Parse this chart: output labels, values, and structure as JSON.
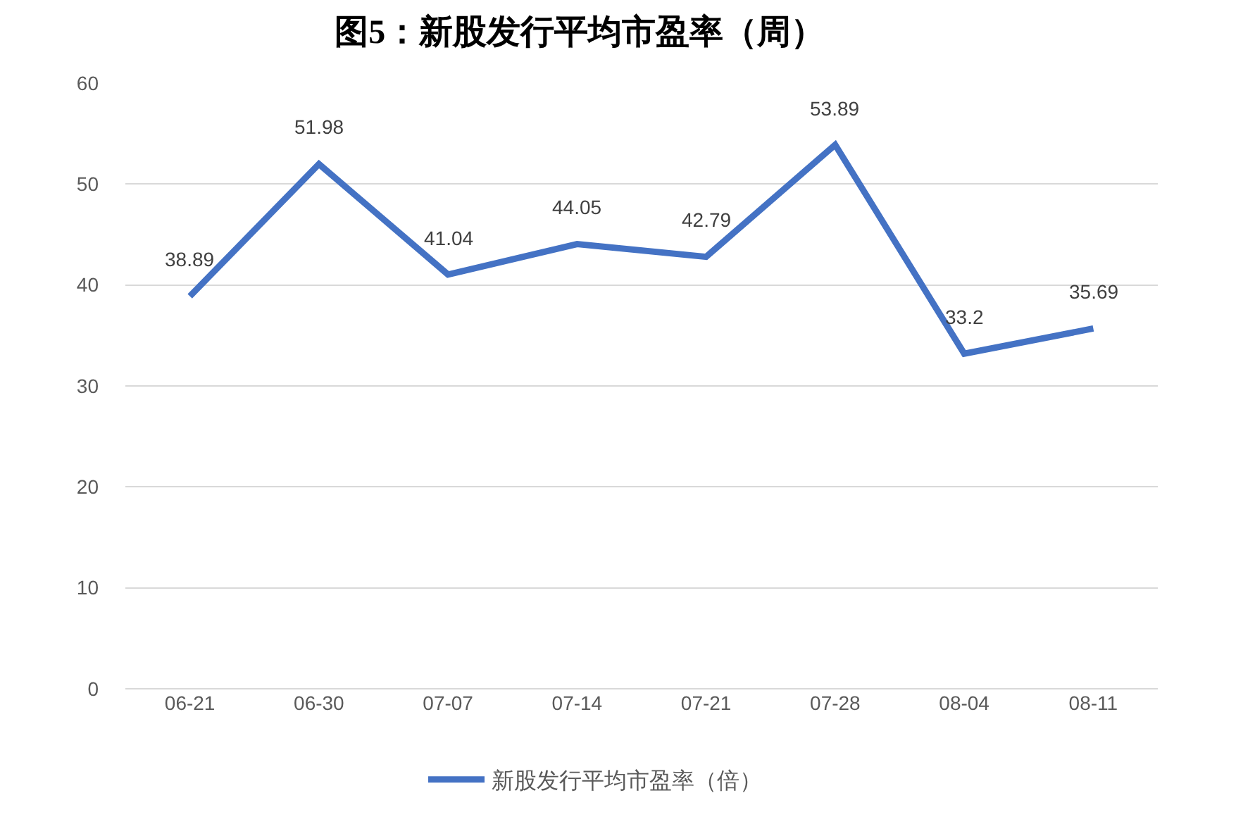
{
  "chart_data": {
    "type": "line",
    "title": "图5：新股发行平均市盈率（周）",
    "categories": [
      "06-21",
      "06-30",
      "07-07",
      "07-14",
      "07-21",
      "07-28",
      "08-04",
      "08-11"
    ],
    "series": [
      {
        "name": "新股发行平均市盈率（倍）",
        "color": "#4472c4",
        "values": [
          38.89,
          51.98,
          41.04,
          44.05,
          42.79,
          53.89,
          33.2,
          35.69
        ]
      }
    ],
    "ylim": [
      0,
      60
    ],
    "yticks": [
      0,
      10,
      20,
      30,
      40,
      50,
      60
    ],
    "grid": "y",
    "legend": "bottom",
    "data_labels": true,
    "marker": "none",
    "line_style": "solid"
  }
}
